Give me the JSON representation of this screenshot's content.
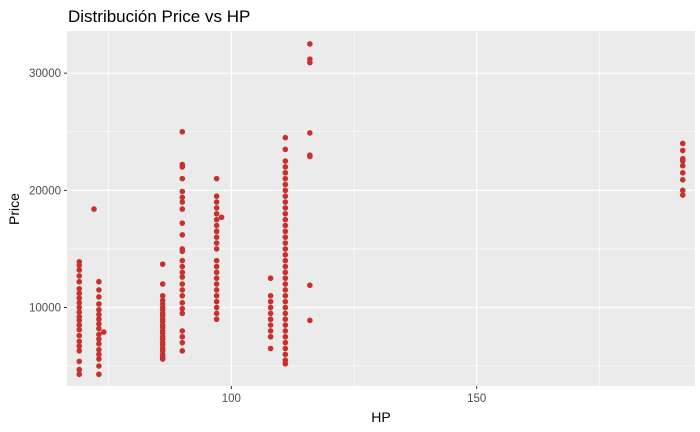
{
  "chart_data": {
    "type": "scatter",
    "title": "Distribución Price vs HP",
    "xlabel": "HP",
    "ylabel": "Price",
    "xlim": [
      66.5,
      194.5
    ],
    "ylim": [
      3300,
      33600
    ],
    "x_ticks": [
      100,
      150
    ],
    "x_tick_labels": [
      "100",
      "150"
    ],
    "y_ticks": [
      10000,
      20000,
      30000
    ],
    "y_tick_labels": [
      "10000",
      "20000",
      "30000"
    ],
    "grid": true,
    "legend": "none",
    "point_color": "#c8302d",
    "panel_color": "#ebebeb",
    "grid_color": "#ffffff",
    "series": [
      {
        "points": [
          [
            69,
            4300
          ],
          [
            69,
            4700
          ],
          [
            69,
            5400
          ],
          [
            69,
            6300
          ],
          [
            69,
            6700
          ],
          [
            69,
            7100
          ],
          [
            69,
            7600
          ],
          [
            69,
            8100
          ],
          [
            69,
            8500
          ],
          [
            69,
            8900
          ],
          [
            69,
            9200
          ],
          [
            69,
            9600
          ],
          [
            69,
            10000
          ],
          [
            69,
            10400
          ],
          [
            69,
            10800
          ],
          [
            69,
            11200
          ],
          [
            69,
            11600
          ],
          [
            69,
            12200
          ],
          [
            69,
            12700
          ],
          [
            69,
            13200
          ],
          [
            69,
            13600
          ],
          [
            69,
            13900
          ],
          [
            72,
            18400
          ],
          [
            73,
            4300
          ],
          [
            73,
            5000
          ],
          [
            73,
            5600
          ],
          [
            73,
            6000
          ],
          [
            73,
            6400
          ],
          [
            73,
            6900
          ],
          [
            73,
            7300
          ],
          [
            73,
            7700
          ],
          [
            73,
            8200
          ],
          [
            73,
            8600
          ],
          [
            73,
            9000
          ],
          [
            73,
            9400
          ],
          [
            73,
            9800
          ],
          [
            73,
            10300
          ],
          [
            73,
            10900
          ],
          [
            73,
            11500
          ],
          [
            73,
            12200
          ],
          [
            74,
            7900
          ],
          [
            86,
            5600
          ],
          [
            86,
            5800
          ],
          [
            86,
            6000
          ],
          [
            86,
            6300
          ],
          [
            86,
            6500
          ],
          [
            86,
            6800
          ],
          [
            86,
            7000
          ],
          [
            86,
            7300
          ],
          [
            86,
            7500
          ],
          [
            86,
            7800
          ],
          [
            86,
            8000
          ],
          [
            86,
            8300
          ],
          [
            86,
            8500
          ],
          [
            86,
            8800
          ],
          [
            86,
            9000
          ],
          [
            86,
            9300
          ],
          [
            86,
            9500
          ],
          [
            86,
            9800
          ],
          [
            86,
            10000
          ],
          [
            86,
            10300
          ],
          [
            86,
            10600
          ],
          [
            86,
            11000
          ],
          [
            86,
            12000
          ],
          [
            86,
            13700
          ],
          [
            90,
            6300
          ],
          [
            90,
            7000
          ],
          [
            90,
            7500
          ],
          [
            90,
            8000
          ],
          [
            90,
            9500
          ],
          [
            90,
            9900
          ],
          [
            90,
            10400
          ],
          [
            90,
            11000
          ],
          [
            90,
            11500
          ],
          [
            90,
            12000
          ],
          [
            90,
            12600
          ],
          [
            90,
            13000
          ],
          [
            90,
            13500
          ],
          [
            90,
            14000
          ],
          [
            90,
            14800
          ],
          [
            90,
            15000
          ],
          [
            90,
            16200
          ],
          [
            90,
            17200
          ],
          [
            90,
            18400
          ],
          [
            90,
            19000
          ],
          [
            90,
            19400
          ],
          [
            90,
            19900
          ],
          [
            90,
            21000
          ],
          [
            90,
            22000
          ],
          [
            90,
            22200
          ],
          [
            90,
            25000
          ],
          [
            97,
            9000
          ],
          [
            97,
            9500
          ],
          [
            97,
            10000
          ],
          [
            97,
            10500
          ],
          [
            97,
            11000
          ],
          [
            97,
            11500
          ],
          [
            97,
            12000
          ],
          [
            97,
            12500
          ],
          [
            97,
            13000
          ],
          [
            97,
            13500
          ],
          [
            97,
            14000
          ],
          [
            97,
            15000
          ],
          [
            97,
            15500
          ],
          [
            97,
            16000
          ],
          [
            97,
            16500
          ],
          [
            97,
            17000
          ],
          [
            97,
            17500
          ],
          [
            97,
            18000
          ],
          [
            97,
            18500
          ],
          [
            97,
            19000
          ],
          [
            97,
            19500
          ],
          [
            97,
            21000
          ],
          [
            98,
            17700
          ],
          [
            108,
            6500
          ],
          [
            108,
            7500
          ],
          [
            108,
            8000
          ],
          [
            108,
            8500
          ],
          [
            108,
            9000
          ],
          [
            108,
            9500
          ],
          [
            108,
            10000
          ],
          [
            108,
            10500
          ],
          [
            108,
            11000
          ],
          [
            108,
            12500
          ],
          [
            111,
            5200
          ],
          [
            111,
            5500
          ],
          [
            111,
            6000
          ],
          [
            111,
            6500
          ],
          [
            111,
            7000
          ],
          [
            111,
            7500
          ],
          [
            111,
            8000
          ],
          [
            111,
            8500
          ],
          [
            111,
            9000
          ],
          [
            111,
            9500
          ],
          [
            111,
            10000
          ],
          [
            111,
            10500
          ],
          [
            111,
            11000
          ],
          [
            111,
            11500
          ],
          [
            111,
            12000
          ],
          [
            111,
            12500
          ],
          [
            111,
            13000
          ],
          [
            111,
            13500
          ],
          [
            111,
            14000
          ],
          [
            111,
            14500
          ],
          [
            111,
            15000
          ],
          [
            111,
            15500
          ],
          [
            111,
            16000
          ],
          [
            111,
            16500
          ],
          [
            111,
            17000
          ],
          [
            111,
            17500
          ],
          [
            111,
            18000
          ],
          [
            111,
            18500
          ],
          [
            111,
            19000
          ],
          [
            111,
            19500
          ],
          [
            111,
            20000
          ],
          [
            111,
            20500
          ],
          [
            111,
            21000
          ],
          [
            111,
            21500
          ],
          [
            111,
            22000
          ],
          [
            111,
            22500
          ],
          [
            111,
            23500
          ],
          [
            111,
            24500
          ],
          [
            116,
            8900
          ],
          [
            116,
            11900
          ],
          [
            116,
            22900
          ],
          [
            116,
            23000
          ],
          [
            116,
            24900
          ],
          [
            116,
            30900
          ],
          [
            116,
            31200
          ],
          [
            116,
            32500
          ],
          [
            192,
            19600
          ],
          [
            192,
            20000
          ],
          [
            192,
            20900
          ],
          [
            192,
            21500
          ],
          [
            192,
            22100
          ],
          [
            192,
            22500
          ],
          [
            192,
            22700
          ],
          [
            192,
            23400
          ],
          [
            192,
            24000
          ]
        ]
      }
    ]
  }
}
